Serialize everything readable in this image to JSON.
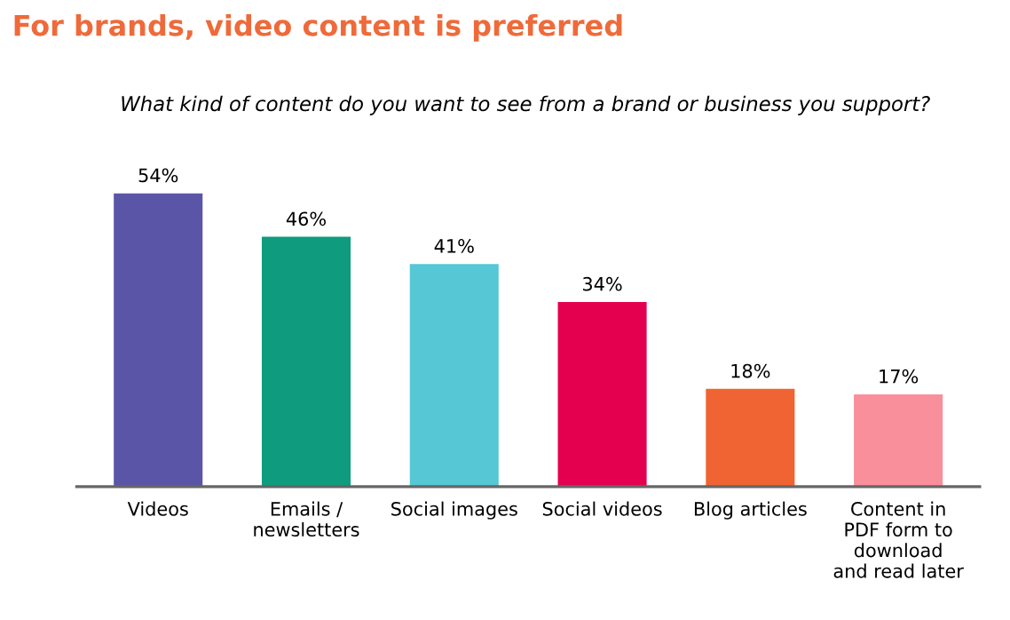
{
  "chart_data": {
    "type": "bar",
    "title": "For brands, video content is preferred",
    "subtitle": "What kind of content do you want to see from a brand or business you support?",
    "categories": [
      "Videos",
      "Emails /\nnewsletters",
      "Social images",
      "Social videos",
      "Blog articles",
      "Content in\nPDF form to\ndownload\nand read later"
    ],
    "values": [
      54,
      46,
      41,
      34,
      18,
      17
    ],
    "value_labels": [
      "54%",
      "46%",
      "41%",
      "34%",
      "18%",
      "17%"
    ],
    "colors": [
      "#5b55a8",
      "#0f9b7e",
      "#56c7d4",
      "#e5004f",
      "#ef6432",
      "#f98f9b"
    ],
    "grid": false,
    "legend": false
  }
}
